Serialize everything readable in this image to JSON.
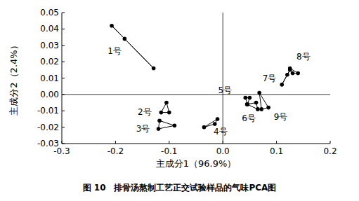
{
  "chart_data": {
    "type": "scatter",
    "title": "图 10　排骨汤熬制工艺正交试验样品的气味PCA图",
    "x_label": "主成分1（96.9%）",
    "y_label": "主成分2（2.4%）",
    "xlim": [
      -0.3,
      0.2
    ],
    "ylim": [
      -0.03,
      0.05
    ],
    "xticks": [
      -0.3,
      -0.2,
      -0.1,
      {
        "value": 0,
        "label": "0.0"
      },
      0.1,
      0.2
    ],
    "yticks": [
      -0.03,
      -0.02,
      -0.01,
      {
        "value": 0,
        "label": "0.00"
      },
      0.01,
      0.02,
      0.03,
      0.04,
      0.05
    ],
    "grid": false,
    "marker": "circle",
    "line_style": "solid",
    "color": "#000000",
    "series": [
      {
        "name": "1号",
        "x": [
          -0.207,
          -0.183,
          -0.129
        ],
        "values": [
          0.042,
          0.034,
          0.016
        ]
      },
      {
        "name": "2号",
        "x": [
          -0.105,
          -0.115,
          -0.1
        ],
        "values": [
          -0.005,
          -0.011,
          -0.011
        ]
      },
      {
        "name": "3号",
        "x": [
          -0.118,
          -0.12,
          -0.09
        ],
        "values": [
          -0.016,
          -0.021,
          -0.019
        ]
      },
      {
        "name": "4号",
        "x": [
          -0.035,
          -0.015,
          -0.01
        ],
        "values": [
          -0.02,
          -0.018,
          -0.015
        ]
      },
      {
        "name": "5号",
        "x": [
          0.042,
          0.05,
          0.046
        ],
        "values": [
          -0.002,
          -0.002,
          -0.006
        ]
      },
      {
        "name": "6号",
        "x": [
          0.045,
          0.062,
          0.065
        ],
        "values": [
          -0.006,
          -0.005,
          -0.009
        ]
      },
      {
        "name": "7号",
        "x": [
          0.11,
          0.12,
          0.125
        ],
        "values": [
          0.006,
          0.012,
          0.015
        ]
      },
      {
        "name": "8号",
        "x": [
          0.125,
          0.13,
          0.14
        ],
        "values": [
          0.016,
          0.013,
          0.013
        ]
      },
      {
        "name": "9号",
        "x": [
          0.068,
          0.085,
          0.072
        ],
        "values": [
          0.001,
          -0.008,
          -0.009
        ]
      }
    ]
  }
}
